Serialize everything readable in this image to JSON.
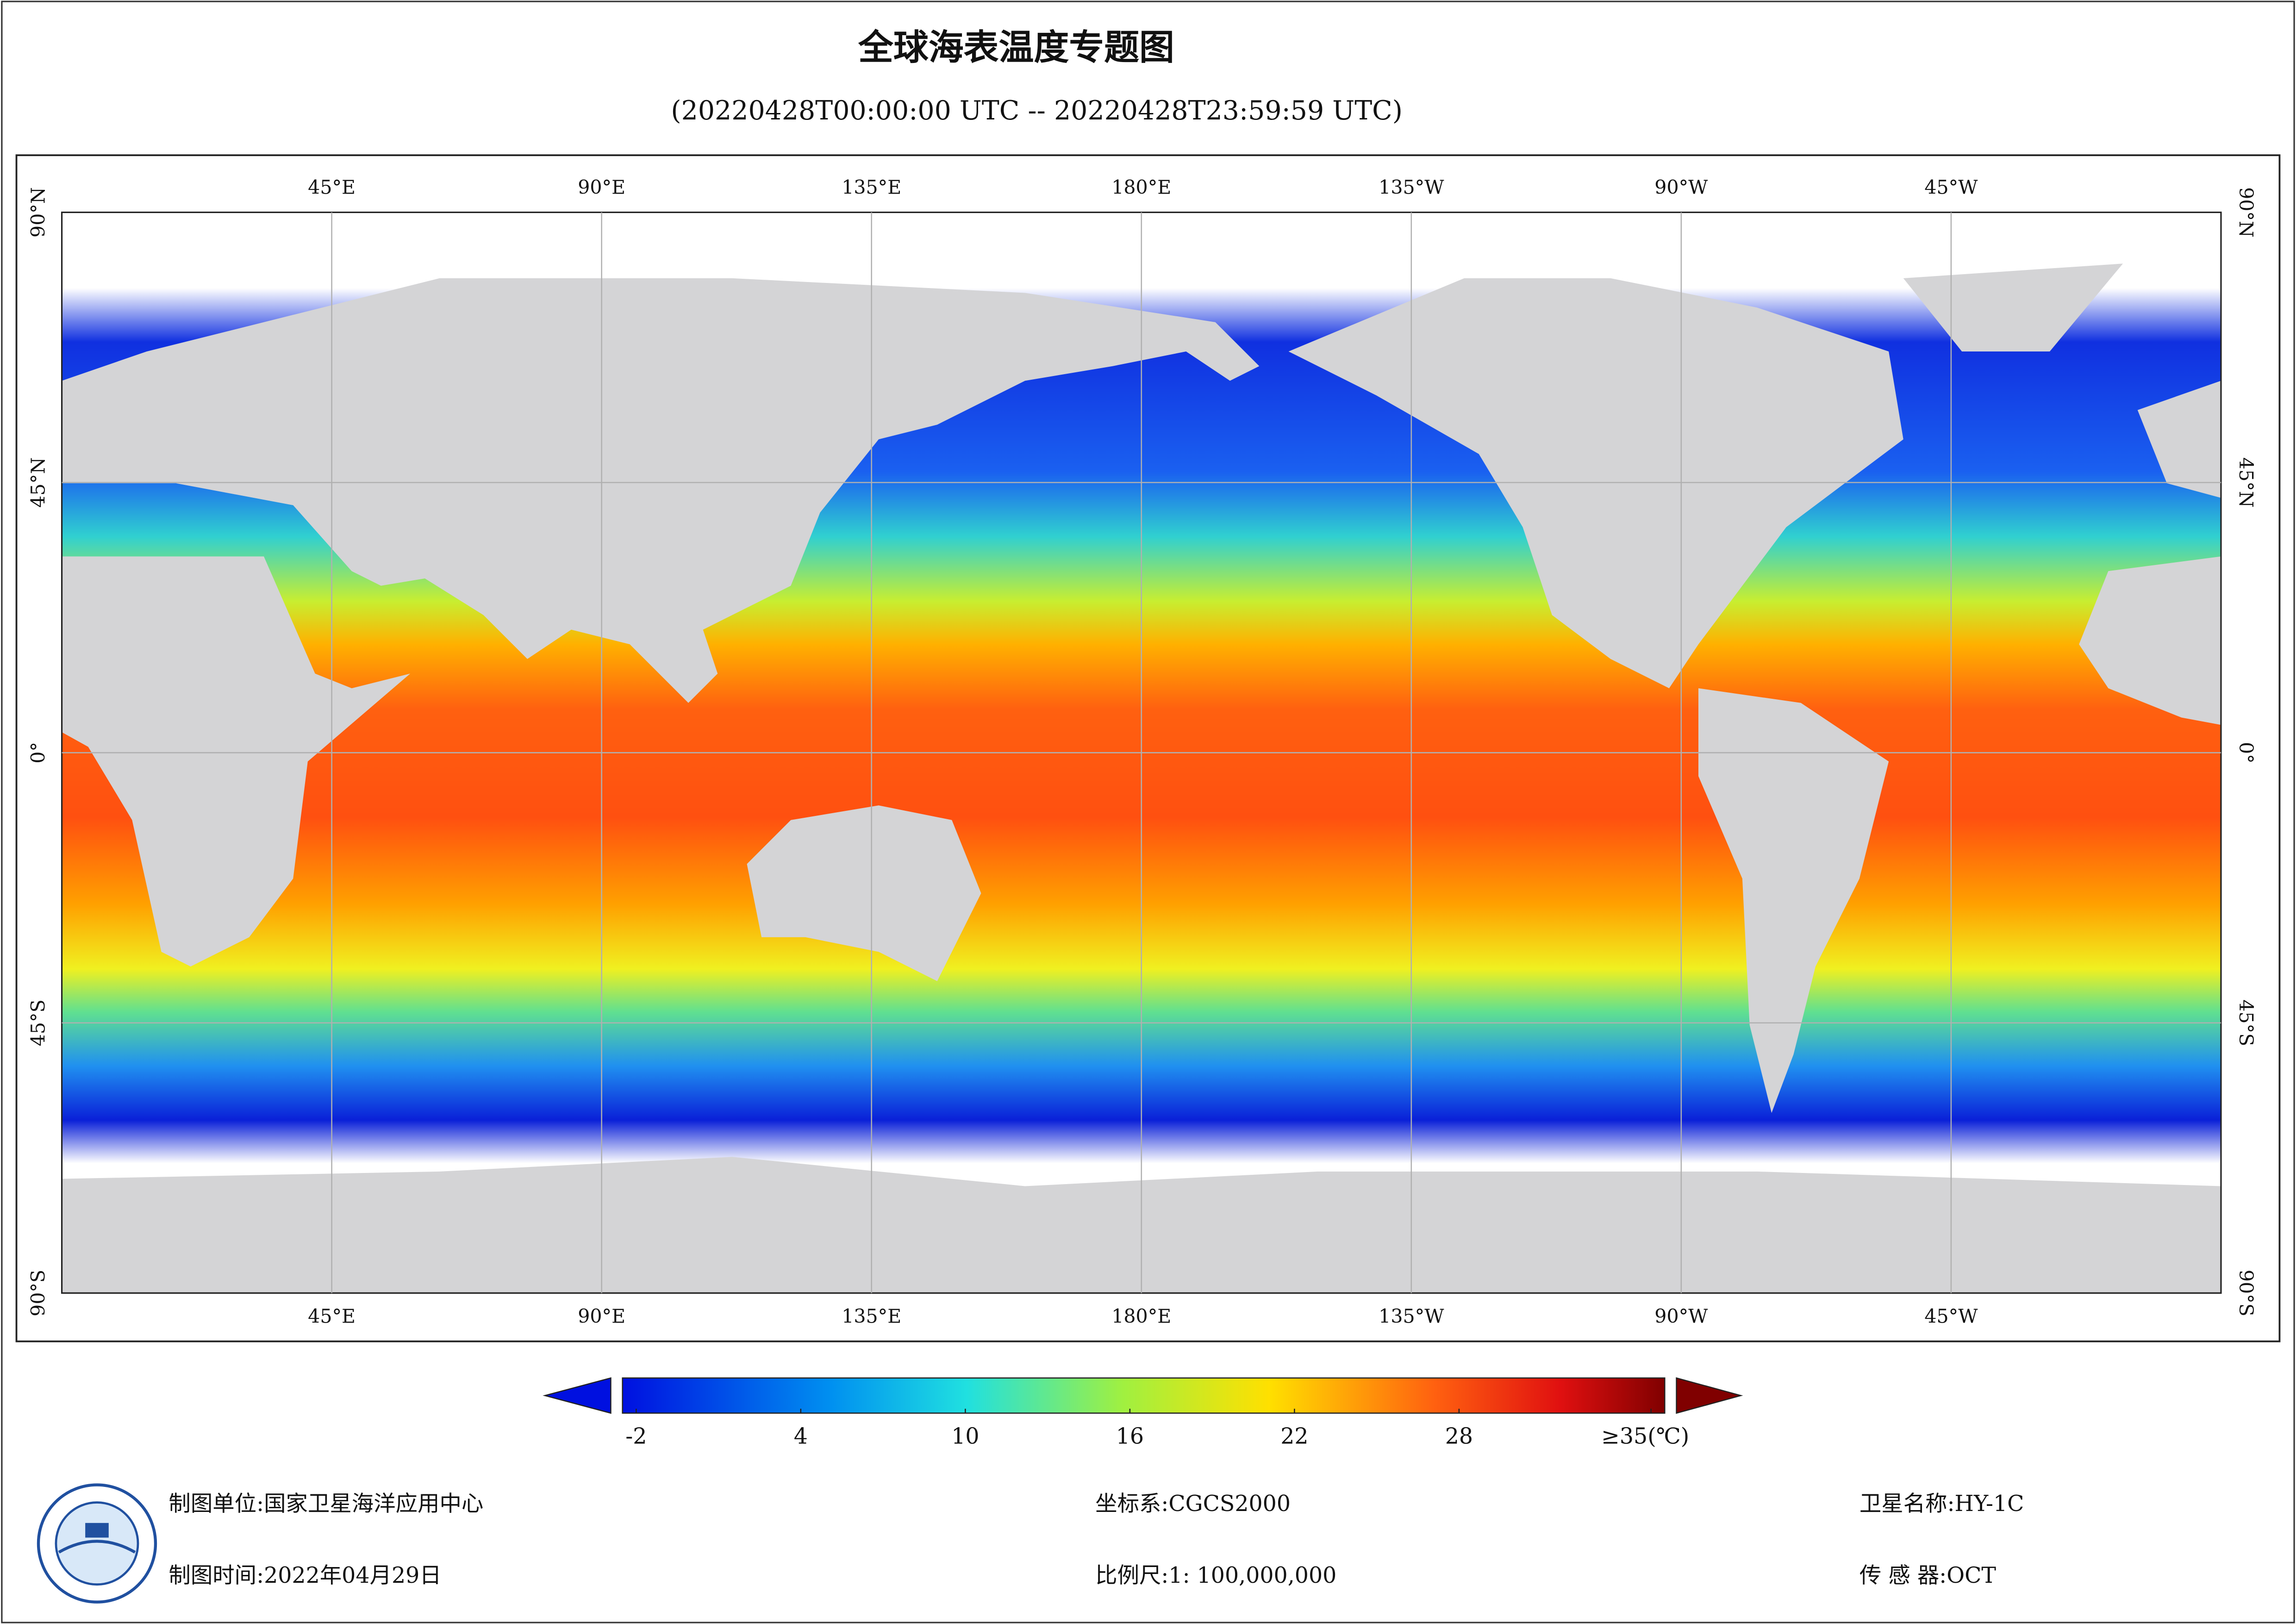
{
  "title": "全球海表温度专题图",
  "subtitle": "(20220428T00:00:00 UTC -- 20220428T23:59:59 UTC)",
  "map": {
    "lon_labels": [
      "45°E",
      "90°E",
      "135°E",
      "180°E",
      "135°W",
      "90°W",
      "45°W"
    ],
    "lat_labels": [
      "90°N",
      "45°N",
      "0°",
      "45°S",
      "90°S"
    ]
  },
  "colorbar": {
    "lim": [
      -2.5,
      35.5
    ],
    "ticks": [
      -2,
      4,
      10,
      16,
      22,
      28,
      {
        "value": 35,
        "label": "≥35(℃)"
      }
    ]
  },
  "footer": {
    "unit": "制图单位:国家卫星海洋应用中心",
    "date": "制图时间:2022年04月29日",
    "crs": "坐标系:CGCS2000",
    "scale": "比例尺:1: 100,000,000",
    "satellite": "卫星名称:HY-1C",
    "sensor": "传 感 器:OCT"
  }
}
